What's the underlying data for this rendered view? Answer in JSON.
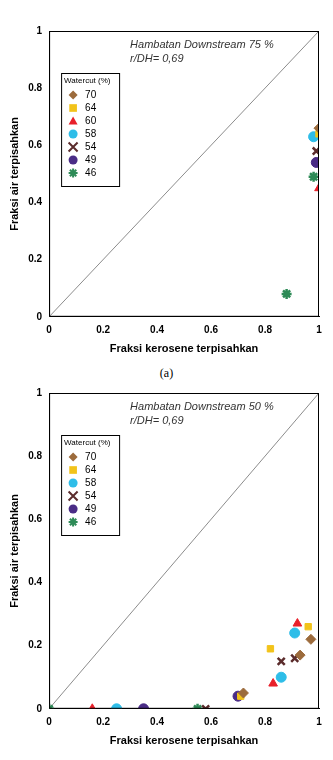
{
  "chart_data": [
    {
      "type": "scatter",
      "annotations": [
        "Hambatan Downstream 75 %",
        "r/DH= 0,69"
      ],
      "x_label": "Fraksi kerosene terpisahkan",
      "y_label": "Fraksi air terpisahkan",
      "legend_title": "Watercut (%)",
      "legend": "upper left",
      "grid": false,
      "caption": "(a)",
      "xlim": [
        0,
        1
      ],
      "ylim": [
        0,
        1
      ],
      "xticks": [
        0,
        0.2,
        0.4,
        0.6,
        0.8,
        1
      ],
      "yticks": [
        0,
        0.2,
        0.4,
        0.6,
        0.8,
        1
      ],
      "series": [
        {
          "type": "line",
          "line_style": "solid",
          "color": "#8c8c8c",
          "x": [
            0,
            1
          ],
          "values": [
            0,
            1
          ]
        },
        {
          "name": "70",
          "color": "#9c6b3c",
          "marker": "diamond",
          "x": [
            1.0
          ],
          "values": [
            0.66
          ]
        },
        {
          "name": "64",
          "color": "#f2c31a",
          "marker": "square",
          "x": [
            1.0
          ],
          "values": [
            0.64
          ]
        },
        {
          "name": "60",
          "color": "#e8202a",
          "marker": "triangle",
          "x": [
            1.0
          ],
          "values": [
            0.45
          ]
        },
        {
          "name": "58",
          "color": "#2ebde8",
          "marker": "circle",
          "x": [
            0.98
          ],
          "values": [
            0.63
          ]
        },
        {
          "name": "54",
          "color": "#5b2c2c",
          "marker": "x",
          "x": [
            0.99
          ],
          "values": [
            0.58
          ]
        },
        {
          "name": "49",
          "color": "#4a2c86",
          "marker": "circle",
          "x": [
            0.99
          ],
          "values": [
            0.54
          ]
        },
        {
          "name": "46",
          "color": "#2e8b57",
          "marker": "asterisk",
          "x": [
            0.98,
            0.88
          ],
          "values": [
            0.49,
            0.08
          ]
        }
      ]
    },
    {
      "type": "scatter",
      "annotations": [
        "Hambatan Downstream 50 %",
        "r/DH= 0,69"
      ],
      "x_label": "Fraksi kerosene terpisahkan",
      "y_label": "Fraksi air terpisahkan",
      "legend_title": "Watercut (%)",
      "legend": "upper left",
      "grid": false,
      "xlim": [
        0,
        1
      ],
      "ylim": [
        0,
        1
      ],
      "xticks": [
        0,
        0.2,
        0.4,
        0.6,
        0.8,
        1
      ],
      "yticks": [
        0,
        0.2,
        0.4,
        0.6,
        0.8,
        1
      ],
      "series": [
        {
          "type": "line",
          "line_style": "solid",
          "color": "#8c8c8c",
          "x": [
            0,
            1
          ],
          "values": [
            0,
            1
          ]
        },
        {
          "name": "70",
          "color": "#9c6b3c",
          "marker": "diamond",
          "x": [
            0.72,
            0.93,
            0.97
          ],
          "values": [
            0.05,
            0.17,
            0.22
          ]
        },
        {
          "name": "64",
          "color": "#f2c31a",
          "marker": "square",
          "x": [
            0.71,
            0.82,
            0.96
          ],
          "values": [
            0.04,
            0.19,
            0.26
          ]
        },
        {
          "color": "#e8202a",
          "marker": "triangle",
          "x": [
            0.16,
            0.83,
            0.92
          ],
          "values": [
            0,
            0.08,
            0.27
          ]
        },
        {
          "name": "58",
          "color": "#2ebde8",
          "marker": "circle",
          "x": [
            0.25,
            0.86,
            0.91
          ],
          "values": [
            0,
            0.1,
            0.24
          ]
        },
        {
          "name": "54",
          "color": "#5b2c2c",
          "marker": "x",
          "x": [
            0.58,
            0.86,
            0.91
          ],
          "values": [
            0,
            0.15,
            0.16
          ]
        },
        {
          "name": "49",
          "color": "#4a2c86",
          "marker": "circle",
          "x": [
            0.35,
            0.7
          ],
          "values": [
            0,
            0.04
          ]
        },
        {
          "name": "46",
          "color": "#2e8b57",
          "marker": "asterisk",
          "x": [
            0,
            0.55
          ],
          "values": [
            0,
            0
          ]
        }
      ]
    }
  ]
}
